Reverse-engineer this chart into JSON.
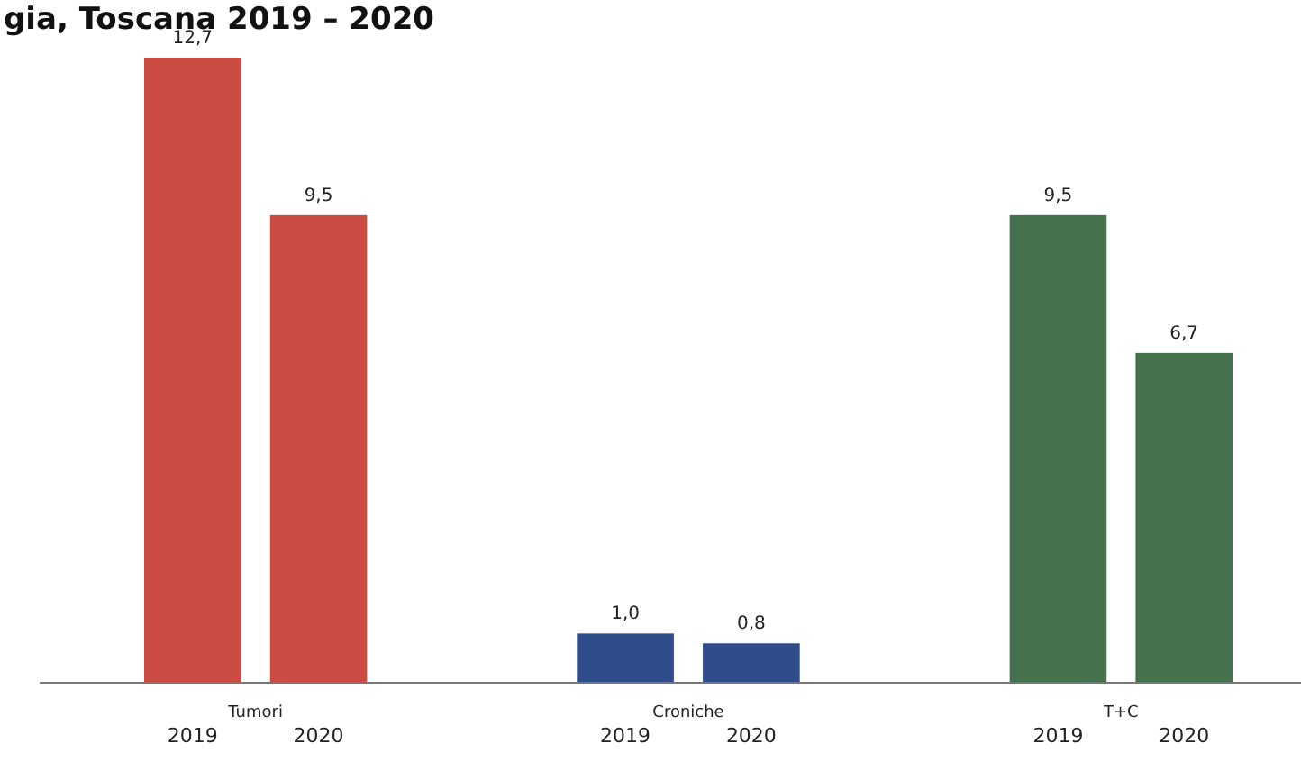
{
  "chart_data": {
    "type": "bar",
    "title": "gia, Toscana 2019 – 2020",
    "categories": [
      "Tumori",
      "Croniche",
      "T+C"
    ],
    "series": [
      {
        "name": "2019",
        "colors": [
          "#cb4c43",
          "#2f4d8a",
          "#45714f"
        ],
        "values": [
          12.7,
          1.0,
          9.5
        ],
        "value_labels": [
          "12,7",
          "1,0",
          "9,5"
        ]
      },
      {
        "name": "2020",
        "colors": [
          "#cb4c43",
          "#2f4d8a",
          "#45714f"
        ],
        "values": [
          9.5,
          0.8,
          6.7
        ],
        "value_labels": [
          "9,5",
          "0,8",
          "6,7"
        ]
      }
    ]
  }
}
